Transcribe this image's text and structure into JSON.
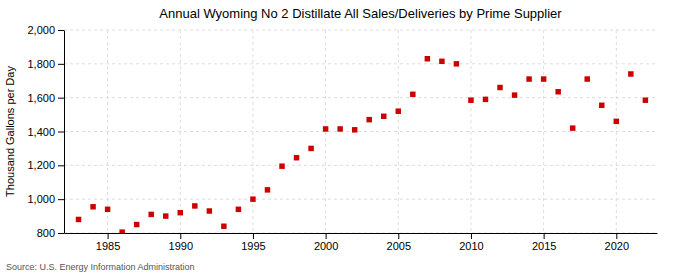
{
  "chart_data": {
    "type": "scatter",
    "title": "Annual Wyoming No 2 Distillate All Sales/Deliveries by Prime Supplier",
    "ylabel": "Thousand Gallons per Day",
    "source": "Source: U.S. Energy Information Administration",
    "x": [
      1983,
      1984,
      1985,
      1986,
      1987,
      1988,
      1989,
      1990,
      1991,
      1992,
      1993,
      1994,
      1995,
      1996,
      1997,
      1998,
      1999,
      2000,
      2001,
      2002,
      2003,
      2004,
      2005,
      2006,
      2007,
      2008,
      2009,
      2010,
      2011,
      2012,
      2013,
      2014,
      2015,
      2016,
      2017,
      2018,
      2019,
      2020,
      2021,
      2022
    ],
    "values": [
      880,
      955,
      940,
      805,
      850,
      910,
      900,
      920,
      960,
      930,
      840,
      940,
      1000,
      1055,
      1195,
      1245,
      1300,
      1415,
      1415,
      1410,
      1470,
      1490,
      1520,
      1620,
      1830,
      1815,
      1800,
      1585,
      1590,
      1660,
      1615,
      1710,
      1710,
      1635,
      1420,
      1710,
      1555,
      1460,
      1740,
      1585
    ],
    "color": "#cc0000",
    "marker": "square",
    "xlim": [
      1982.0,
      2022.8
    ],
    "xticks": [
      1985,
      1990,
      1995,
      2000,
      2005,
      2010,
      2015,
      2020
    ],
    "ylim": [
      800,
      2000
    ],
    "yticks": [
      800,
      {
        "value": 1000,
        "label": "1,000"
      },
      {
        "value": 1200,
        "label": "1,200"
      },
      {
        "value": 1400,
        "label": "1,400"
      },
      {
        "value": 1600,
        "label": "1,600"
      },
      {
        "value": 1800,
        "label": "1,800"
      },
      {
        "value": 2000,
        "label": "2,000"
      }
    ],
    "grid": true
  }
}
